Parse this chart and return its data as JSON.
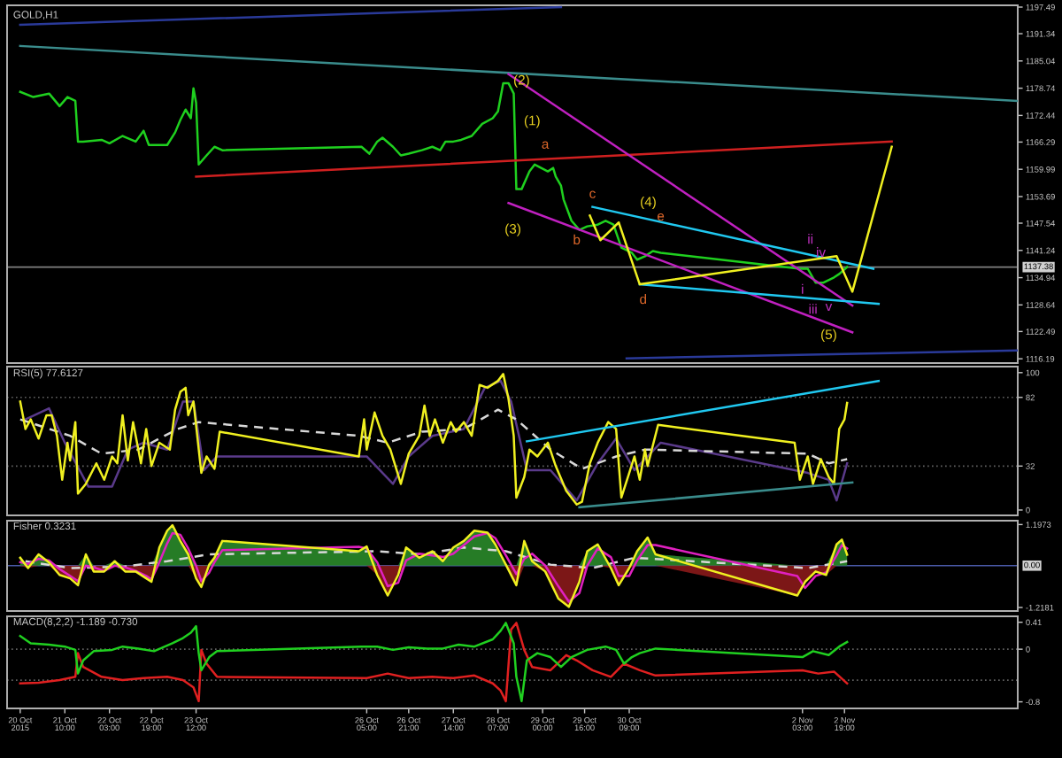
{
  "chart_data": [
    {
      "type": "line",
      "title": "GOLD,H1",
      "xlim": [
        "2015-10-20T12:00",
        "2015-11-05T13:00"
      ],
      "ylim": [
        1115.2,
        1197.9
      ],
      "yticks": [
        1197.49,
        1191.34,
        1185.04,
        1178.74,
        1172.44,
        1166.29,
        1159.99,
        1153.69,
        1147.54,
        1141.24,
        1134.94,
        1128.64,
        1122.49,
        1116.19
      ],
      "tick_labels": "y",
      "series": [
        {
          "color": "#1fd01f",
          "x": [
            "2015-10-20T17:00",
            "2015-10-20T22:00",
            "2015-10-21T04:00",
            "2015-10-21T08:00",
            "2015-10-21T11:00",
            "2015-10-21T14:00",
            "2015-10-21T15:00",
            "2015-10-21T17:00",
            "2015-10-22T00:00",
            "2015-10-22T03:00",
            "2015-10-22T08:00",
            "2015-10-22T13:00",
            "2015-10-22T16:00",
            "2015-10-22T18:00",
            "2015-10-23T01:00",
            "2015-10-23T04:00",
            "2015-10-23T06:00",
            "2015-10-23T08:00",
            "2015-10-23T10:00",
            "2015-10-23T11:00",
            "2015-10-23T12:00",
            "2015-10-23T13:00",
            "2015-10-23T16:00",
            "2015-10-23T19:00",
            "2015-10-23T22:00",
            "2015-10-26T03:00",
            "2015-10-26T06:00",
            "2015-10-26T09:00",
            "2015-10-26T11:00",
            "2015-10-26T15:00",
            "2015-10-26T18:00",
            "2015-10-26T21:00",
            "2015-10-27T02:00",
            "2015-10-27T06:00",
            "2015-10-27T09:00",
            "2015-10-27T11:00",
            "2015-10-27T14:00",
            "2015-10-27T17:00",
            "2015-10-27T21:00",
            "2015-10-28T01:00",
            "2015-10-28T05:00",
            "2015-10-28T07:00",
            "2015-10-28T09:00",
            "2015-10-28T11:00",
            "2015-10-28T13:00",
            "2015-10-28T14:00",
            "2015-10-28T16:00",
            "2015-10-28T19:00",
            "2015-10-28T21:00",
            "2015-10-29T02:00",
            "2015-10-29T04:00",
            "2015-10-29T05:00",
            "2015-10-29T07:00",
            "2015-10-29T08:00",
            "2015-10-29T11:00",
            "2015-10-29T14:00",
            "2015-10-29T17:00",
            "2015-10-29T21:00",
            "2015-10-30T00:00",
            "2015-10-30T03:00",
            "2015-10-30T06:00",
            "2015-10-30T10:00",
            "2015-10-30T12:00",
            "2015-10-30T15:00",
            "2015-10-30T18:00",
            "2015-10-30T21:00",
            "2015-11-02T02:00",
            "2015-11-02T05:00",
            "2015-11-02T08:00",
            "2015-11-02T11:00",
            "2015-11-02T15:00",
            "2015-11-02T17:00",
            "2015-11-02T20:00"
          ],
          "values": [
            1177.9,
            1176.7,
            1177.5,
            1174.6,
            1176.7,
            1175.8,
            1166.4,
            1166.4,
            1166.8,
            1166.0,
            1167.7,
            1166.4,
            1168.9,
            1165.6,
            1165.6,
            1168.5,
            1171.4,
            1173.8,
            1171.8,
            1178.7,
            1175.4,
            1161.1,
            1163.2,
            1165.2,
            1164.4,
            1165.2,
            1163.6,
            1166.4,
            1167.3,
            1165.2,
            1163.2,
            1163.6,
            1164.4,
            1165.2,
            1164.4,
            1166.4,
            1166.4,
            1166.8,
            1167.7,
            1170.5,
            1171.8,
            1173.4,
            1179.9,
            1179.9,
            1177.5,
            1155.4,
            1155.4,
            1159.5,
            1161.1,
            1159.5,
            1160.3,
            1158.3,
            1156.2,
            1153.0,
            1148.1,
            1146.0,
            1146.8,
            1147.2,
            1148.1,
            1147.2,
            1141.9,
            1140.7,
            1139.1,
            1139.9,
            1141.1,
            1140.7,
            1137.0,
            1137.0,
            1133.8,
            1133.8,
            1135.0,
            1135.8,
            1137.4
          ]
        },
        {
          "color": "#2a3a9a",
          "x": [
            "2015-10-20T17:00",
            "2015-10-29T07:00"
          ],
          "values": [
            1193.4,
            1197.5
          ]
        },
        {
          "color": "#3a8c8c",
          "x": [
            "2015-10-20T17:00",
            "2015-11-05T13:00"
          ],
          "values": [
            1188.5,
            1175.8
          ]
        },
        {
          "color": "#d02020",
          "x": [
            "2015-10-23T12:00",
            "2015-11-03T13:00"
          ],
          "values": [
            1158.3,
            1166.4
          ]
        },
        {
          "color": "#c020c0",
          "x": [
            "2015-10-28T11:00",
            "2015-11-02T22:00"
          ],
          "values": [
            1182.0,
            1128.5
          ]
        },
        {
          "color": "#c020c0",
          "x": [
            "2015-10-28T11:00",
            "2015-11-02T22:00"
          ],
          "values": [
            1152.2,
            1122.3
          ]
        },
        {
          "color": "#20c8f0",
          "x": [
            "2015-10-29T19:00",
            "2015-11-03T06:00"
          ],
          "values": [
            1151.3,
            1137.0
          ]
        },
        {
          "color": "#20c8f0",
          "x": [
            "2015-10-30T13:00",
            "2015-11-03T08:00"
          ],
          "values": [
            1133.4,
            1128.9
          ]
        },
        {
          "color": "#f0f020",
          "x": [
            "2015-10-29T18:00",
            "2015-10-29T22:00",
            "2015-10-30T05:00",
            "2015-10-30T13:00",
            "2015-11-02T16:00",
            "2015-11-02T22:00",
            "2015-11-03T13:00"
          ],
          "values": [
            1149.3,
            1143.6,
            1147.7,
            1133.4,
            1139.9,
            1131.7,
            1165.2
          ]
        },
        {
          "color": "#2a3a9a",
          "x": [
            "2015-10-30T08:00",
            "2015-11-05T13:00"
          ],
          "values": [
            1116.3,
            1118.1
          ]
        }
      ],
      "ref_lines": [
        {
          "axis": "y",
          "value": 1137.38,
          "label": "1137.38",
          "color": "#808080"
        }
      ],
      "annotations": [
        {
          "text": "(1)",
          "x": "2015-10-28T07:00",
          "y": 1173.4
        },
        {
          "text": "(2)",
          "x": "2015-10-28T16:00",
          "y": 1182.1
        },
        {
          "text": "(3)",
          "x": "2015-10-28T14:00",
          "y": 1155.4
        },
        {
          "text": "(4)",
          "x": "2015-10-30T05:00",
          "y": 1147.7
        },
        {
          "text": "(5)",
          "x": "2015-11-02T13:00",
          "y": 1124.4
        },
        {
          "text": "a",
          "x": "2015-10-29T01:00",
          "y": 1162.4
        },
        {
          "text": "b",
          "x": "2015-10-29T13:00",
          "y": 1146.3
        },
        {
          "text": "c",
          "x": "2015-10-29T19:00",
          "y": 1151.3
        },
        {
          "text": "d",
          "x": "2015-10-30T13:00",
          "y": 1133.4
        },
        {
          "text": "e",
          "x": "2015-10-30T21:00",
          "y": 1147.8
        },
        {
          "text": "i",
          "x": "2015-11-02T03:00",
          "y": 1130.3
        },
        {
          "text": "ii",
          "x": "2015-11-02T06:00",
          "y": 1140.2
        },
        {
          "text": "iii",
          "x": "2015-11-02T07:00",
          "y": 1125.7
        },
        {
          "text": "iv",
          "x": "2015-11-02T10:00",
          "y": 1139.4
        },
        {
          "text": "v",
          "x": "2015-11-02T13:00",
          "y": 1129.8
        }
      ]
    },
    {
      "type": "line",
      "title": "RSI(5) 77.6127",
      "xlim": [
        "2015-10-20T12:00",
        "2015-11-05T13:00"
      ],
      "ylim": [
        -3.9,
        104.4
      ],
      "yticks": [
        100,
        82,
        32,
        0
      ],
      "tick_labels": "y",
      "series": [
        {
          "color": "#5a3a8a",
          "x": [
            "2015-10-20T19:00",
            "2015-10-21T04:00",
            "2015-10-21T10:00",
            "2015-10-21T19:00",
            "2015-10-22T04:00",
            "2015-10-22T10:00",
            "2015-10-22T16:00",
            "2015-10-23T01:00",
            "2015-10-23T07:00",
            "2015-10-23T11:00",
            "2015-10-23T15:00",
            "2015-10-23T20:00",
            "2015-10-26T05:00",
            "2015-10-26T15:00",
            "2015-10-26T21:00",
            "2015-10-27T06:00",
            "2015-10-27T18:00",
            "2015-10-28T02:00",
            "2015-10-28T08:00",
            "2015-10-28T12:00",
            "2015-10-28T18:00",
            "2015-10-29T03:00",
            "2015-10-29T13:00",
            "2015-10-29T21:00",
            "2015-10-30T04:00",
            "2015-10-30T11:00",
            "2015-10-30T21:00",
            "2015-11-02T05:00",
            "2015-11-02T13:00",
            "2015-11-02T16:00",
            "2015-11-02T20:00"
          ],
          "values": [
            66,
            74,
            49,
            17,
            17,
            44,
            49,
            44,
            79,
            79,
            29,
            39,
            39,
            19,
            39,
            54,
            59,
            89,
            94,
            79,
            29,
            29,
            7,
            34,
            52,
            29,
            49,
            27,
            22,
            7,
            34
          ]
        },
        {
          "color": "#d8d8d8",
          "line_style": "dashed",
          "x": [
            "2015-10-20T17:00",
            "2015-10-21T12:00",
            "2015-10-22T00:00",
            "2015-10-22T14:00",
            "2015-10-23T05:00",
            "2015-10-23T13:00",
            "2015-10-26T02:00",
            "2015-10-26T13:00",
            "2015-10-27T02:00",
            "2015-10-27T18:00",
            "2015-10-28T07:00",
            "2015-10-28T14:00",
            "2015-10-29T03:00",
            "2015-10-29T15:00",
            "2015-10-30T04:00",
            "2015-10-30T15:00",
            "2015-11-02T05:00",
            "2015-11-02T13:00",
            "2015-11-02T20:00"
          ],
          "values": [
            66,
            54,
            41,
            44,
            59,
            64,
            54,
            49,
            57,
            59,
            73,
            66,
            44,
            30,
            39,
            44,
            41,
            34,
            37
          ]
        },
        {
          "color": "#f0f020",
          "x": [
            "2015-10-20T17:00",
            "2015-10-20T19:00",
            "2015-10-20T21:00",
            "2015-10-21T00:00",
            "2015-10-21T03:00",
            "2015-10-21T05:00",
            "2015-10-21T07:00",
            "2015-10-21T09:00",
            "2015-10-21T11:00",
            "2015-10-21T12:00",
            "2015-10-21T14:00",
            "2015-10-21T15:00",
            "2015-10-21T18:00",
            "2015-10-21T22:00",
            "2015-10-22T01:00",
            "2015-10-22T04:00",
            "2015-10-22T06:00",
            "2015-10-22T08:00",
            "2015-10-22T10:00",
            "2015-10-22T12:00",
            "2015-10-22T15:00",
            "2015-10-22T17:00",
            "2015-10-22T19:00",
            "2015-10-22T22:00",
            "2015-10-23T02:00",
            "2015-10-23T04:00",
            "2015-10-23T06:00",
            "2015-10-23T08:00",
            "2015-10-23T09:00",
            "2015-10-23T11:00",
            "2015-10-23T14:00",
            "2015-10-23T16:00",
            "2015-10-23T19:00",
            "2015-10-23T21:00",
            "2015-10-26T02:00",
            "2015-10-26T04:00",
            "2015-10-26T05:00",
            "2015-10-26T08:00",
            "2015-10-26T11:00",
            "2015-10-26T14:00",
            "2015-10-26T18:00",
            "2015-10-26T21:00",
            "2015-10-27T01:00",
            "2015-10-27T03:00",
            "2015-10-27T05:00",
            "2015-10-27T07:00",
            "2015-10-27T10:00",
            "2015-10-27T13:00",
            "2015-10-27T15:00",
            "2015-10-27T18:00",
            "2015-10-27T21:00",
            "2015-10-28T00:00",
            "2015-10-28T03:00",
            "2015-10-28T07:00",
            "2015-10-28T09:00",
            "2015-10-28T11:00",
            "2015-10-28T13:00",
            "2015-10-28T14:00",
            "2015-10-28T17:00",
            "2015-10-28T19:00",
            "2015-10-28T22:00",
            "2015-10-29T02:00",
            "2015-10-29T05:00",
            "2015-10-29T09:00",
            "2015-10-29T13:00",
            "2015-10-29T15:00",
            "2015-10-29T18:00",
            "2015-10-29T21:00",
            "2015-10-30T01:00",
            "2015-10-30T04:00",
            "2015-10-30T06:00",
            "2015-10-30T09:00",
            "2015-10-30T11:00",
            "2015-10-30T13:00",
            "2015-10-30T15:00",
            "2015-10-30T16:00",
            "2015-10-30T20:00",
            "2015-11-02T00:00",
            "2015-11-02T02:00",
            "2015-11-02T05:00",
            "2015-11-02T07:00",
            "2015-11-02T10:00",
            "2015-11-02T13:00",
            "2015-11-02T15:00",
            "2015-11-02T17:00",
            "2015-11-02T19:00",
            "2015-11-02T20:00"
          ],
          "values": [
            79,
            59,
            66,
            52,
            69,
            69,
            54,
            22,
            49,
            36,
            64,
            12,
            19,
            34,
            22,
            39,
            34,
            69,
            36,
            64,
            34,
            59,
            32,
            49,
            44,
            73,
            86,
            89,
            69,
            79,
            27,
            39,
            30,
            57,
            39,
            66,
            44,
            71,
            54,
            44,
            19,
            41,
            54,
            76,
            54,
            66,
            49,
            64,
            57,
            64,
            54,
            91,
            89,
            94,
            99,
            81,
            54,
            9,
            24,
            44,
            39,
            49,
            32,
            14,
            4,
            6,
            34,
            49,
            64,
            59,
            9,
            27,
            39,
            22,
            44,
            32,
            62,
            49,
            22,
            39,
            19,
            37,
            24,
            19,
            59,
            66,
            78
          ]
        },
        {
          "color": "#20c8f0",
          "x": [
            "2015-10-28T18:00",
            "2015-11-03T08:00"
          ],
          "values": [
            50,
            94
          ]
        },
        {
          "color": "#3a8c8c",
          "x": [
            "2015-10-29T14:00",
            "2015-11-02T22:00"
          ],
          "values": [
            2,
            20
          ]
        }
      ],
      "ref_lines": [
        {
          "axis": "y",
          "value": 82,
          "label": null,
          "color": "#606060",
          "line_style": "dotted"
        },
        {
          "axis": "y",
          "value": 32,
          "label": null,
          "color": "#606060",
          "line_style": "dotted"
        }
      ]
    },
    {
      "type": "line",
      "title": "Fisher 0.3231",
      "xlim": [
        "2015-10-20T12:00",
        "2015-11-05T13:00"
      ],
      "ylim": [
        -1.321,
        1.31
      ],
      "yticks": [
        1.1973,
        -1.2181
      ],
      "tick_labels": "y",
      "x": [
        "2015-10-20T17:00",
        "2015-10-20T20:00",
        "2015-10-21T00:00",
        "2015-10-21T04:00",
        "2015-10-21T08:00",
        "2015-10-21T12:00",
        "2015-10-21T15:00",
        "2015-10-21T18:00",
        "2015-10-21T21:00",
        "2015-10-22T01:00",
        "2015-10-22T05:00",
        "2015-10-22T09:00",
        "2015-10-22T13:00",
        "2015-10-22T17:00",
        "2015-10-22T19:00",
        "2015-10-22T22:00",
        "2015-10-23T01:00",
        "2015-10-23T03:00",
        "2015-10-23T06:00",
        "2015-10-23T09:00",
        "2015-10-23T12:00",
        "2015-10-23T14:00",
        "2015-10-23T17:00",
        "2015-10-23T19:00",
        "2015-10-23T22:00",
        "2015-10-26T02:00",
        "2015-10-26T05:00",
        "2015-10-26T09:00",
        "2015-10-26T13:00",
        "2015-10-26T17:00",
        "2015-10-26T20:00",
        "2015-10-27T01:00",
        "2015-10-27T06:00",
        "2015-10-27T10:00",
        "2015-10-27T14:00",
        "2015-10-27T18:00",
        "2015-10-27T22:00",
        "2015-10-28T03:00",
        "2015-10-28T06:00",
        "2015-10-28T10:00",
        "2015-10-28T14:00",
        "2015-10-28T17:00",
        "2015-10-28T20:00",
        "2015-10-29T01:00",
        "2015-10-29T06:00",
        "2015-10-29T10:00",
        "2015-10-29T14:00",
        "2015-10-29T17:00",
        "2015-10-29T21:00",
        "2015-10-30T02:00",
        "2015-10-30T05:00",
        "2015-10-30T09:00",
        "2015-10-30T12:00",
        "2015-10-30T16:00",
        "2015-10-30T19:00",
        "2015-11-02T01:00",
        "2015-11-02T04:00",
        "2015-11-02T08:00",
        "2015-11-02T12:00",
        "2015-11-02T16:00",
        "2015-11-02T18:00",
        "2015-11-02T20:00"
      ],
      "series": [
        {
          "type": "area",
          "color": "#2a8a2a",
          "values": [
            0.23,
            0,
            0.33,
            0.09,
            0,
            0,
            0,
            0.33,
            0,
            0,
            0.13,
            0,
            0,
            0,
            0,
            0.53,
            1.02,
            1.18,
            0.72,
            0.33,
            0,
            0,
            0.03,
            0.23,
            0.72,
            0.42,
            0.56,
            0,
            0,
            0,
            0.53,
            0.23,
            0.42,
            0.13,
            0.53,
            0.72,
            1.02,
            0.96,
            0.62,
            0.03,
            0,
            0.72,
            0.13,
            0,
            0,
            0,
            0,
            0.42,
            0.62,
            0,
            0,
            0,
            0.42,
            0.82,
            0.33,
            0,
            0,
            0,
            0,
            0.62,
            0.76,
            0.32
          ]
        },
        {
          "type": "area",
          "color": "#8a1a1a",
          "values": [
            0,
            -0.07,
            0,
            0,
            -0.27,
            -0.37,
            -0.57,
            0,
            -0.17,
            -0.17,
            0,
            -0.17,
            -0.17,
            -0.37,
            -0.47,
            0,
            0,
            0,
            0,
            0,
            -0.37,
            -0.62,
            0,
            0,
            0,
            0,
            0,
            -0.27,
            -0.87,
            -0.27,
            0,
            0,
            0,
            0,
            0,
            0,
            0,
            0,
            0,
            0,
            -0.57,
            0,
            0,
            -0.17,
            -0.96,
            -1.2,
            -0.47,
            0,
            0,
            -0.07,
            -0.57,
            -0.07,
            0,
            0,
            0,
            -0.87,
            -0.47,
            -0.17,
            -0.27,
            0,
            0,
            0
          ]
        },
        {
          "color": "#d8d8d8",
          "line_style": "dashed",
          "x": [
            "2015-10-20T19:00",
            "2015-10-21T12:00",
            "2015-10-22T08:00",
            "2015-10-23T01:00",
            "2015-10-23T17:00",
            "2015-10-26T09:00",
            "2015-10-27T02:00",
            "2015-10-27T18:00",
            "2015-10-28T10:00",
            "2015-10-29T03:00",
            "2015-10-29T19:00",
            "2015-10-30T11:00",
            "2015-11-02T05:00",
            "2015-11-02T20:00"
          ],
          "values": [
            0.13,
            -0.07,
            -0.03,
            0.13,
            0.33,
            0.42,
            0.33,
            0.53,
            0.42,
            0.03,
            -0.07,
            0.23,
            -0.07,
            0.13
          ]
        },
        {
          "color": "#e020c0",
          "values": [
            0.1,
            0.05,
            0.2,
            0.15,
            -0.1,
            -0.3,
            -0.45,
            0.0,
            -0.05,
            -0.15,
            0.0,
            -0.05,
            -0.15,
            -0.3,
            -0.4,
            0.1,
            0.65,
            0.95,
            0.9,
            0.5,
            0.0,
            -0.45,
            -0.2,
            0.1,
            0.45,
            0.55,
            0.5,
            0.1,
            -0.6,
            -0.5,
            0.15,
            0.35,
            0.3,
            0.25,
            0.35,
            0.6,
            0.85,
            0.95,
            0.8,
            0.3,
            -0.25,
            0.2,
            0.35,
            0.0,
            -0.6,
            -1.05,
            -0.8,
            0.0,
            0.5,
            0.25,
            -0.3,
            -0.3,
            0.15,
            0.6,
            0.6,
            -0.3,
            -0.65,
            -0.3,
            -0.2,
            0.3,
            0.6,
            0.5
          ]
        },
        {
          "color": "#f0f020",
          "values": [
            0.23,
            -0.07,
            0.33,
            0.09,
            -0.27,
            -0.37,
            -0.57,
            0.33,
            -0.17,
            -0.17,
            0.13,
            -0.17,
            -0.17,
            -0.37,
            -0.47,
            0.53,
            1.02,
            1.18,
            0.72,
            0.33,
            -0.37,
            -0.62,
            0.03,
            0.23,
            0.72,
            0.42,
            0.56,
            -0.27,
            -0.87,
            -0.27,
            0.53,
            0.23,
            0.42,
            0.13,
            0.53,
            0.72,
            1.02,
            0.96,
            0.62,
            0.03,
            -0.57,
            0.72,
            0.13,
            -0.17,
            -0.96,
            -1.2,
            -0.47,
            0.42,
            0.62,
            -0.07,
            -0.57,
            -0.07,
            0.42,
            0.82,
            0.33,
            -0.87,
            -0.47,
            -0.17,
            -0.27,
            0.62,
            0.76,
            0.32
          ]
        }
      ],
      "ref_lines": [
        {
          "axis": "y",
          "value": 0,
          "label": "0.00",
          "color": "#4a5aa8"
        }
      ]
    },
    {
      "type": "line",
      "title": "MACD(8,2,2) -1.189 -0.730",
      "xlim": [
        "2015-10-20T12:00",
        "2015-11-05T13:00"
      ],
      "ylim": [
        -0.9,
        0.5
      ],
      "yticks": [
        0.41,
        0,
        -0.8
      ],
      "xticks": [
        {
          "value": "2015-10-20T17:00",
          "label": "20 Oct 2015"
        },
        {
          "value": "2015-10-21T10:00",
          "label": "21 Oct 10:00"
        },
        {
          "value": "2015-10-22T03:00",
          "label": "22 Oct 03:00"
        },
        {
          "value": "2015-10-22T19:00",
          "label": "22 Oct 19:00"
        },
        {
          "value": "2015-10-23T12:00",
          "label": "23 Oct 12:00"
        },
        {
          "value": "2015-10-26T05:00",
          "label": "26 Oct 05:00"
        },
        {
          "value": "2015-10-26T21:00",
          "label": "26 Oct 21:00"
        },
        {
          "value": "2015-10-27T14:00",
          "label": "27 Oct 14:00"
        },
        {
          "value": "2015-10-28T07:00",
          "label": "28 Oct 07:00"
        },
        {
          "value": "2015-10-29T00:00",
          "label": "29 Oct 00:00"
        },
        {
          "value": "2015-10-29T16:00",
          "label": "29 Oct 16:00"
        },
        {
          "value": "2015-10-30T09:00",
          "label": "30 Oct 09:00"
        },
        {
          "value": "2015-11-02T03:00",
          "label": "2 Nov 03:00"
        },
        {
          "value": "2015-11-02T19:00",
          "label": "2 Nov 19:00"
        }
      ],
      "series": [
        {
          "color": "#e02020",
          "x": [
            "2015-10-20T17:00",
            "2015-10-21T00:00",
            "2015-10-21T08:00",
            "2015-10-21T14:00",
            "2015-10-21T15:00",
            "2015-10-21T17:00",
            "2015-10-22T00:00",
            "2015-10-22T08:00",
            "2015-10-22T16:00",
            "2015-10-23T01:00",
            "2015-10-23T07:00",
            "2015-10-23T11:00",
            "2015-10-23T13:00",
            "2015-10-23T14:00",
            "2015-10-23T16:00",
            "2015-10-23T20:00",
            "2015-10-26T05:00",
            "2015-10-26T13:00",
            "2015-10-26T21:00",
            "2015-10-27T06:00",
            "2015-10-27T14:00",
            "2015-10-27T22:00",
            "2015-10-28T05:00",
            "2015-10-28T08:00",
            "2015-10-28T10:00",
            "2015-10-28T12:00",
            "2015-10-28T14:00",
            "2015-10-28T17:00",
            "2015-10-28T20:00",
            "2015-10-29T03:00",
            "2015-10-29T09:00",
            "2015-10-29T13:00",
            "2015-10-29T19:00",
            "2015-10-30T02:00",
            "2015-10-30T07:00",
            "2015-10-30T13:00",
            "2015-10-30T19:00",
            "2015-11-02T03:00",
            "2015-11-02T09:00",
            "2015-11-02T15:00",
            "2015-11-02T20:00"
          ],
          "values": [
            -0.52,
            -0.51,
            -0.47,
            -0.42,
            -0.06,
            -0.27,
            -0.42,
            -0.47,
            -0.44,
            -0.42,
            -0.47,
            -0.58,
            -0.79,
            -0.01,
            -0.22,
            -0.42,
            -0.44,
            -0.37,
            -0.44,
            -0.42,
            -0.44,
            -0.4,
            -0.52,
            -0.63,
            -0.79,
            0.3,
            0.4,
            -0.01,
            -0.27,
            -0.32,
            -0.09,
            -0.17,
            -0.32,
            -0.42,
            -0.22,
            -0.32,
            -0.4,
            -0.32,
            -0.37,
            -0.34,
            -0.52
          ]
        },
        {
          "color": "#20d020",
          "x": [
            "2015-10-20T17:00",
            "2015-10-20T21:00",
            "2015-10-21T04:00",
            "2015-10-21T10:00",
            "2015-10-21T14:00",
            "2015-10-21T15:00",
            "2015-10-21T17:00",
            "2015-10-21T21:00",
            "2015-10-22T04:00",
            "2015-10-22T08:00",
            "2015-10-22T14:00",
            "2015-10-22T20:00",
            "2015-10-23T03:00",
            "2015-10-23T07:00",
            "2015-10-23T10:00",
            "2015-10-23T12:00",
            "2015-10-23T13:00",
            "2015-10-23T14:00",
            "2015-10-23T17:00",
            "2015-10-23T20:00",
            "2015-10-26T03:00",
            "2015-10-26T09:00",
            "2015-10-26T15:00",
            "2015-10-26T21:00",
            "2015-10-27T04:00",
            "2015-10-27T10:00",
            "2015-10-27T16:00",
            "2015-10-27T22:00",
            "2015-10-28T05:00",
            "2015-10-28T08:00",
            "2015-10-28T10:00",
            "2015-10-28T13:00",
            "2015-10-28T14:00",
            "2015-10-28T16:00",
            "2015-10-28T18:00",
            "2015-10-28T22:00",
            "2015-10-29T03:00",
            "2015-10-29T07:00",
            "2015-10-29T11:00",
            "2015-10-29T17:00",
            "2015-10-30T00:00",
            "2015-10-30T04:00",
            "2015-10-30T07:00",
            "2015-10-30T10:00",
            "2015-10-30T13:00",
            "2015-10-30T19:00",
            "2015-11-02T03:00",
            "2015-11-02T07:00",
            "2015-11-02T13:00",
            "2015-11-02T17:00",
            "2015-11-02T20:00"
          ],
          "values": [
            0.2,
            0.09,
            0.07,
            0.04,
            -0.01,
            -0.37,
            -0.17,
            -0.03,
            -0.01,
            0.04,
            0.01,
            -0.03,
            0.09,
            0.17,
            0.25,
            0.35,
            -0.06,
            -0.32,
            -0.12,
            -0.03,
            0.04,
            0.04,
            -0.01,
            0.03,
            0.01,
            0.01,
            0.07,
            0.04,
            0.15,
            0.28,
            0.4,
            0.09,
            -0.42,
            -0.79,
            -0.17,
            -0.06,
            -0.12,
            -0.27,
            -0.12,
            -0.01,
            0.04,
            -0.01,
            -0.22,
            -0.12,
            -0.06,
            0.01,
            -0.12,
            -0.03,
            -0.09,
            0.04,
            0.11
          ]
        }
      ],
      "ref_lines": [
        {
          "axis": "y",
          "value": 0,
          "label": null,
          "color": "#606060",
          "line_style": "dotted"
        },
        {
          "axis": "y",
          "value": -0.47,
          "label": null,
          "color": "#606060",
          "line_style": "dotted"
        }
      ]
    }
  ]
}
